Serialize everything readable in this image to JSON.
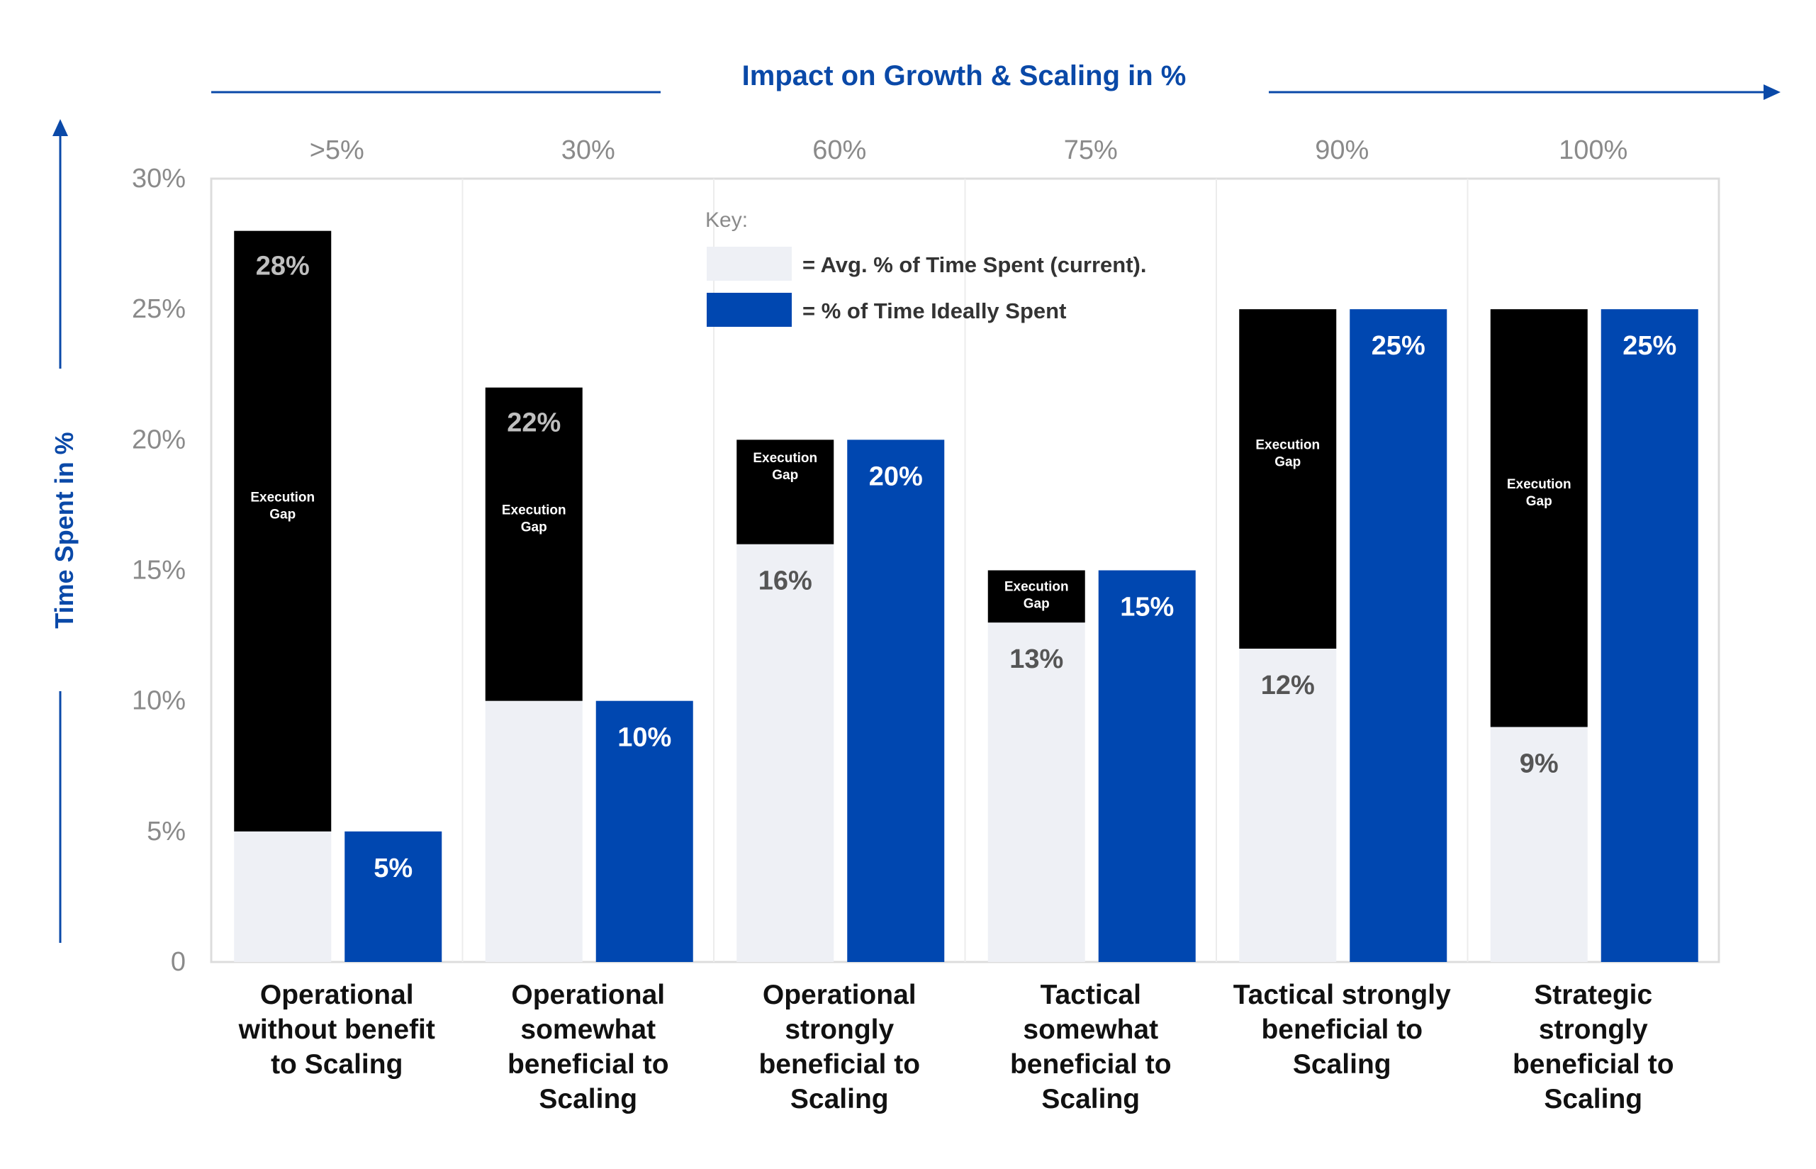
{
  "chart_data": {
    "type": "bar",
    "title": "Impact on Growth & Scaling in %",
    "ylabel": "Time Spent in %",
    "ylim": [
      0,
      30
    ],
    "y_ticks": [
      "0",
      "5%",
      "10%",
      "15%",
      "20%",
      "25%",
      "30%"
    ],
    "impact_labels": [
      ">5%",
      "30%",
      "60%",
      "75%",
      "90%",
      "100%"
    ],
    "categories": [
      "Operational without benefit to Scaling",
      "Operational somewhat beneficial to Scaling",
      "Operational strongly beneficial to Scaling",
      "Tactical somewhat beneficial to Scaling",
      "Tactical strongly beneficial to Scaling",
      "Strategic strongly beneficial to Scaling"
    ],
    "category_lines": [
      [
        "Operational",
        "without benefit",
        "to Scaling"
      ],
      [
        "Operational",
        "somewhat",
        "beneficial to",
        "Scaling"
      ],
      [
        "Operational",
        "strongly",
        "beneficial to",
        "Scaling"
      ],
      [
        "Tactical",
        "somewhat",
        "beneficial to",
        "Scaling"
      ],
      [
        "Tactical strongly",
        "beneficial to",
        "Scaling"
      ],
      [
        "Strategic",
        "strongly",
        "beneficial to",
        "Scaling"
      ]
    ],
    "series": [
      {
        "name": "= Avg. % of Time Spent (current).",
        "values": [
          5,
          10,
          16,
          13,
          12,
          9
        ],
        "color": "#eef0f5"
      },
      {
        "name": "= % of Time Ideally Spent",
        "values": [
          5,
          10,
          20,
          15,
          25,
          25
        ],
        "color": "#0047b0"
      }
    ],
    "gap_total": [
      28,
      22,
      20,
      15,
      25,
      25
    ],
    "gap_color": "#000000",
    "value_labels": {
      "gap_top": [
        "28%",
        "22%",
        "",
        "",
        "",
        ""
      ],
      "current": [
        "",
        "",
        "16%",
        "13%",
        "12%",
        "9%"
      ],
      "ideal": [
        "5%",
        "10%",
        "20%",
        "15%",
        "25%",
        "25%"
      ]
    },
    "gap_label": [
      "Execution",
      "Gap"
    ],
    "key_title": "Key:",
    "accent_color": "#0a49a8",
    "gap_marker_color": "#7a1020",
    "grid": false
  }
}
